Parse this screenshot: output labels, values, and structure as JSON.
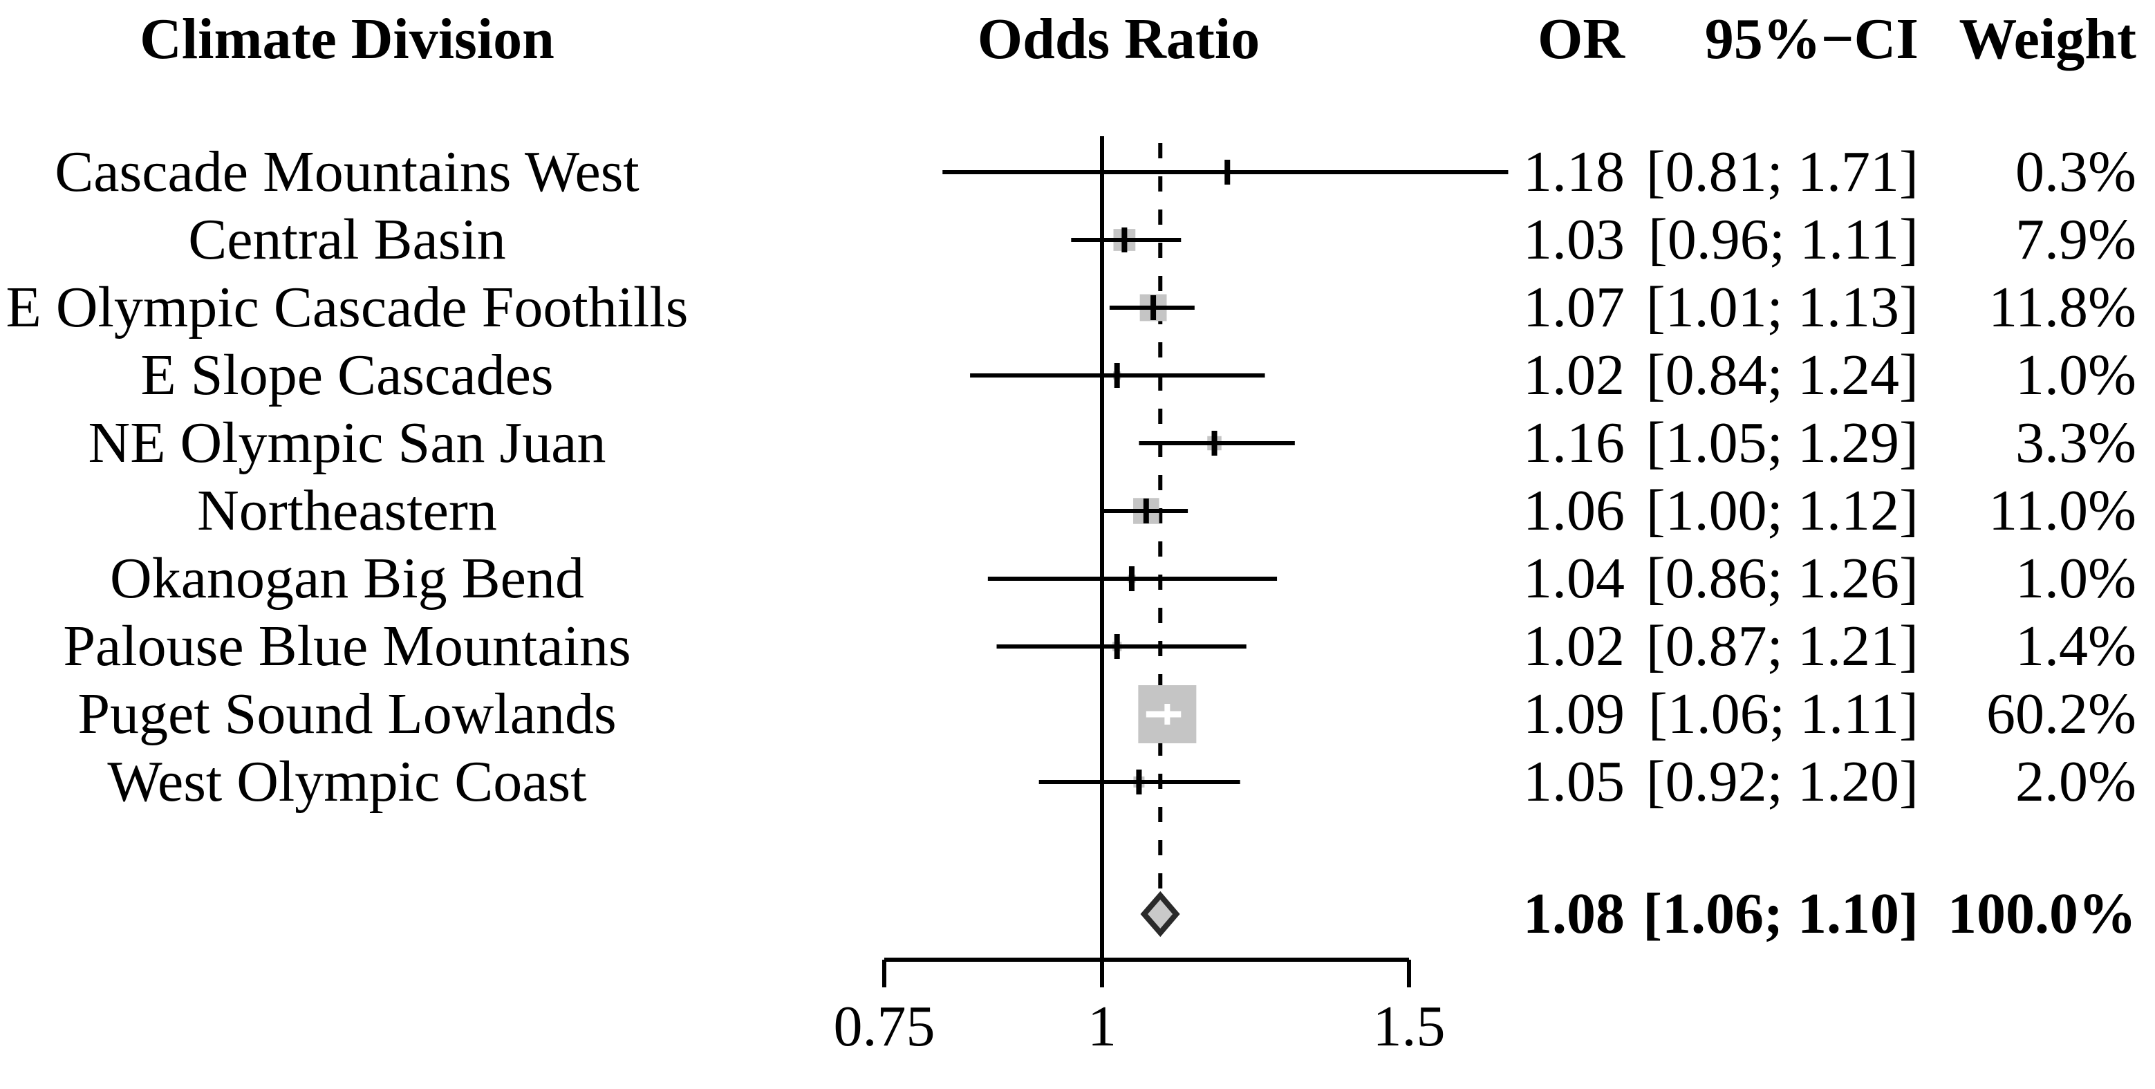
{
  "header": {
    "climate_division": "Climate Division",
    "odds_ratio": "Odds Ratio",
    "or": "OR",
    "ci": "95%−CI",
    "weight": "Weight"
  },
  "chart_data": {
    "type": "scatter",
    "subtype": "forest-plot",
    "x_axis": {
      "scale": "log",
      "tick_values": [
        0.75,
        1,
        1.5
      ],
      "tick_labels": [
        "0.75",
        "1",
        "1.5"
      ],
      "range": [
        0.75,
        1.5
      ]
    },
    "reference_value": 1,
    "overall_value": 1.08,
    "grid": "off",
    "studies": [
      {
        "label": "Cascade Mountains West",
        "or": 1.18,
        "lo": 0.81,
        "hi": 1.71,
        "weight": 0.3,
        "or_text": "1.18",
        "ci_text": "[0.81; 1.71]",
        "weight_text": "0.3%"
      },
      {
        "label": "Central Basin",
        "or": 1.03,
        "lo": 0.96,
        "hi": 1.11,
        "weight": 7.9,
        "or_text": "1.03",
        "ci_text": "[0.96; 1.11]",
        "weight_text": "7.9%"
      },
      {
        "label": "E Olympic Cascade Foothills",
        "or": 1.07,
        "lo": 1.01,
        "hi": 1.13,
        "weight": 11.8,
        "or_text": "1.07",
        "ci_text": "[1.01; 1.13]",
        "weight_text": "11.8%"
      },
      {
        "label": "E Slope Cascades",
        "or": 1.02,
        "lo": 0.84,
        "hi": 1.24,
        "weight": 1.0,
        "or_text": "1.02",
        "ci_text": "[0.84; 1.24]",
        "weight_text": "1.0%"
      },
      {
        "label": "NE Olympic San Juan",
        "or": 1.16,
        "lo": 1.05,
        "hi": 1.29,
        "weight": 3.3,
        "or_text": "1.16",
        "ci_text": "[1.05; 1.29]",
        "weight_text": "3.3%"
      },
      {
        "label": "Northeastern",
        "or": 1.06,
        "lo": 1.0,
        "hi": 1.12,
        "weight": 11.0,
        "or_text": "1.06",
        "ci_text": "[1.00; 1.12]",
        "weight_text": "11.0%"
      },
      {
        "label": "Okanogan Big Bend",
        "or": 1.04,
        "lo": 0.86,
        "hi": 1.26,
        "weight": 1.0,
        "or_text": "1.04",
        "ci_text": "[0.86; 1.26]",
        "weight_text": "1.0%"
      },
      {
        "label": "Palouse Blue Mountains",
        "or": 1.02,
        "lo": 0.87,
        "hi": 1.21,
        "weight": 1.4,
        "or_text": "1.02",
        "ci_text": "[0.87; 1.21]",
        "weight_text": "1.4%"
      },
      {
        "label": "Puget Sound Lowlands",
        "or": 1.09,
        "lo": 1.06,
        "hi": 1.11,
        "weight": 60.2,
        "or_text": "1.09",
        "ci_text": "[1.06; 1.11]",
        "weight_text": "60.2%"
      },
      {
        "label": "West Olympic Coast",
        "or": 1.05,
        "lo": 0.92,
        "hi": 1.2,
        "weight": 2.0,
        "or_text": "1.05",
        "ci_text": "[0.92; 1.20]",
        "weight_text": "2.0%"
      }
    ],
    "summary": {
      "or": 1.08,
      "lo": 1.06,
      "hi": 1.1,
      "weight": 100.0,
      "or_text": "1.08",
      "ci_text": "[1.06; 1.10]",
      "weight_text": "100.0%"
    }
  },
  "colors": {
    "square_fill": "#c5c5c5",
    "diamond_fill": "#c9c9c9",
    "diamond_border": "#2a2a2a",
    "line": "#000000",
    "white_cross": "#ffffff"
  }
}
